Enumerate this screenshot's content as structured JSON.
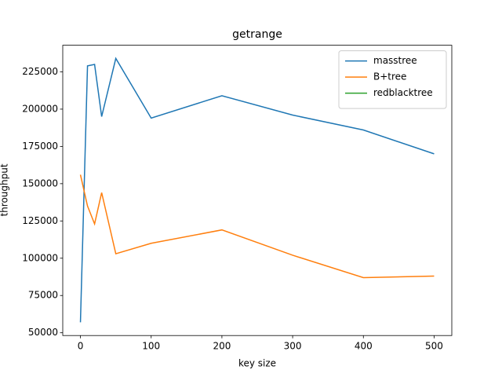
{
  "chart_data": {
    "type": "line",
    "title": "getrange",
    "xlabel": "key size",
    "ylabel": "throughput",
    "x": [
      0,
      10,
      20,
      30,
      50,
      100,
      200,
      300,
      400,
      500
    ],
    "series": [
      {
        "name": "masstree",
        "color": "#1f77b4",
        "values": [
          57000,
          229000,
          230000,
          195000,
          234000,
          194000,
          209000,
          196000,
          186000,
          170000
        ]
      },
      {
        "name": "B+tree",
        "color": "#ff7f0e",
        "values": [
          156000,
          135000,
          123000,
          144000,
          103000,
          110000,
          119000,
          102000,
          87000,
          88000
        ]
      },
      {
        "name": "redblacktree",
        "color": "#2ca02c",
        "values": [
          null,
          null,
          null,
          null,
          null,
          null,
          null,
          null,
          null,
          null
        ]
      }
    ],
    "xlim": [
      -25,
      525
    ],
    "xticks": [
      0,
      100,
      200,
      300,
      400,
      500
    ],
    "ylim": [
      48150,
      242850
    ],
    "yticks": [
      50000,
      75000,
      100000,
      125000,
      150000,
      175000,
      200000,
      225000
    ],
    "legend": "upper right"
  }
}
